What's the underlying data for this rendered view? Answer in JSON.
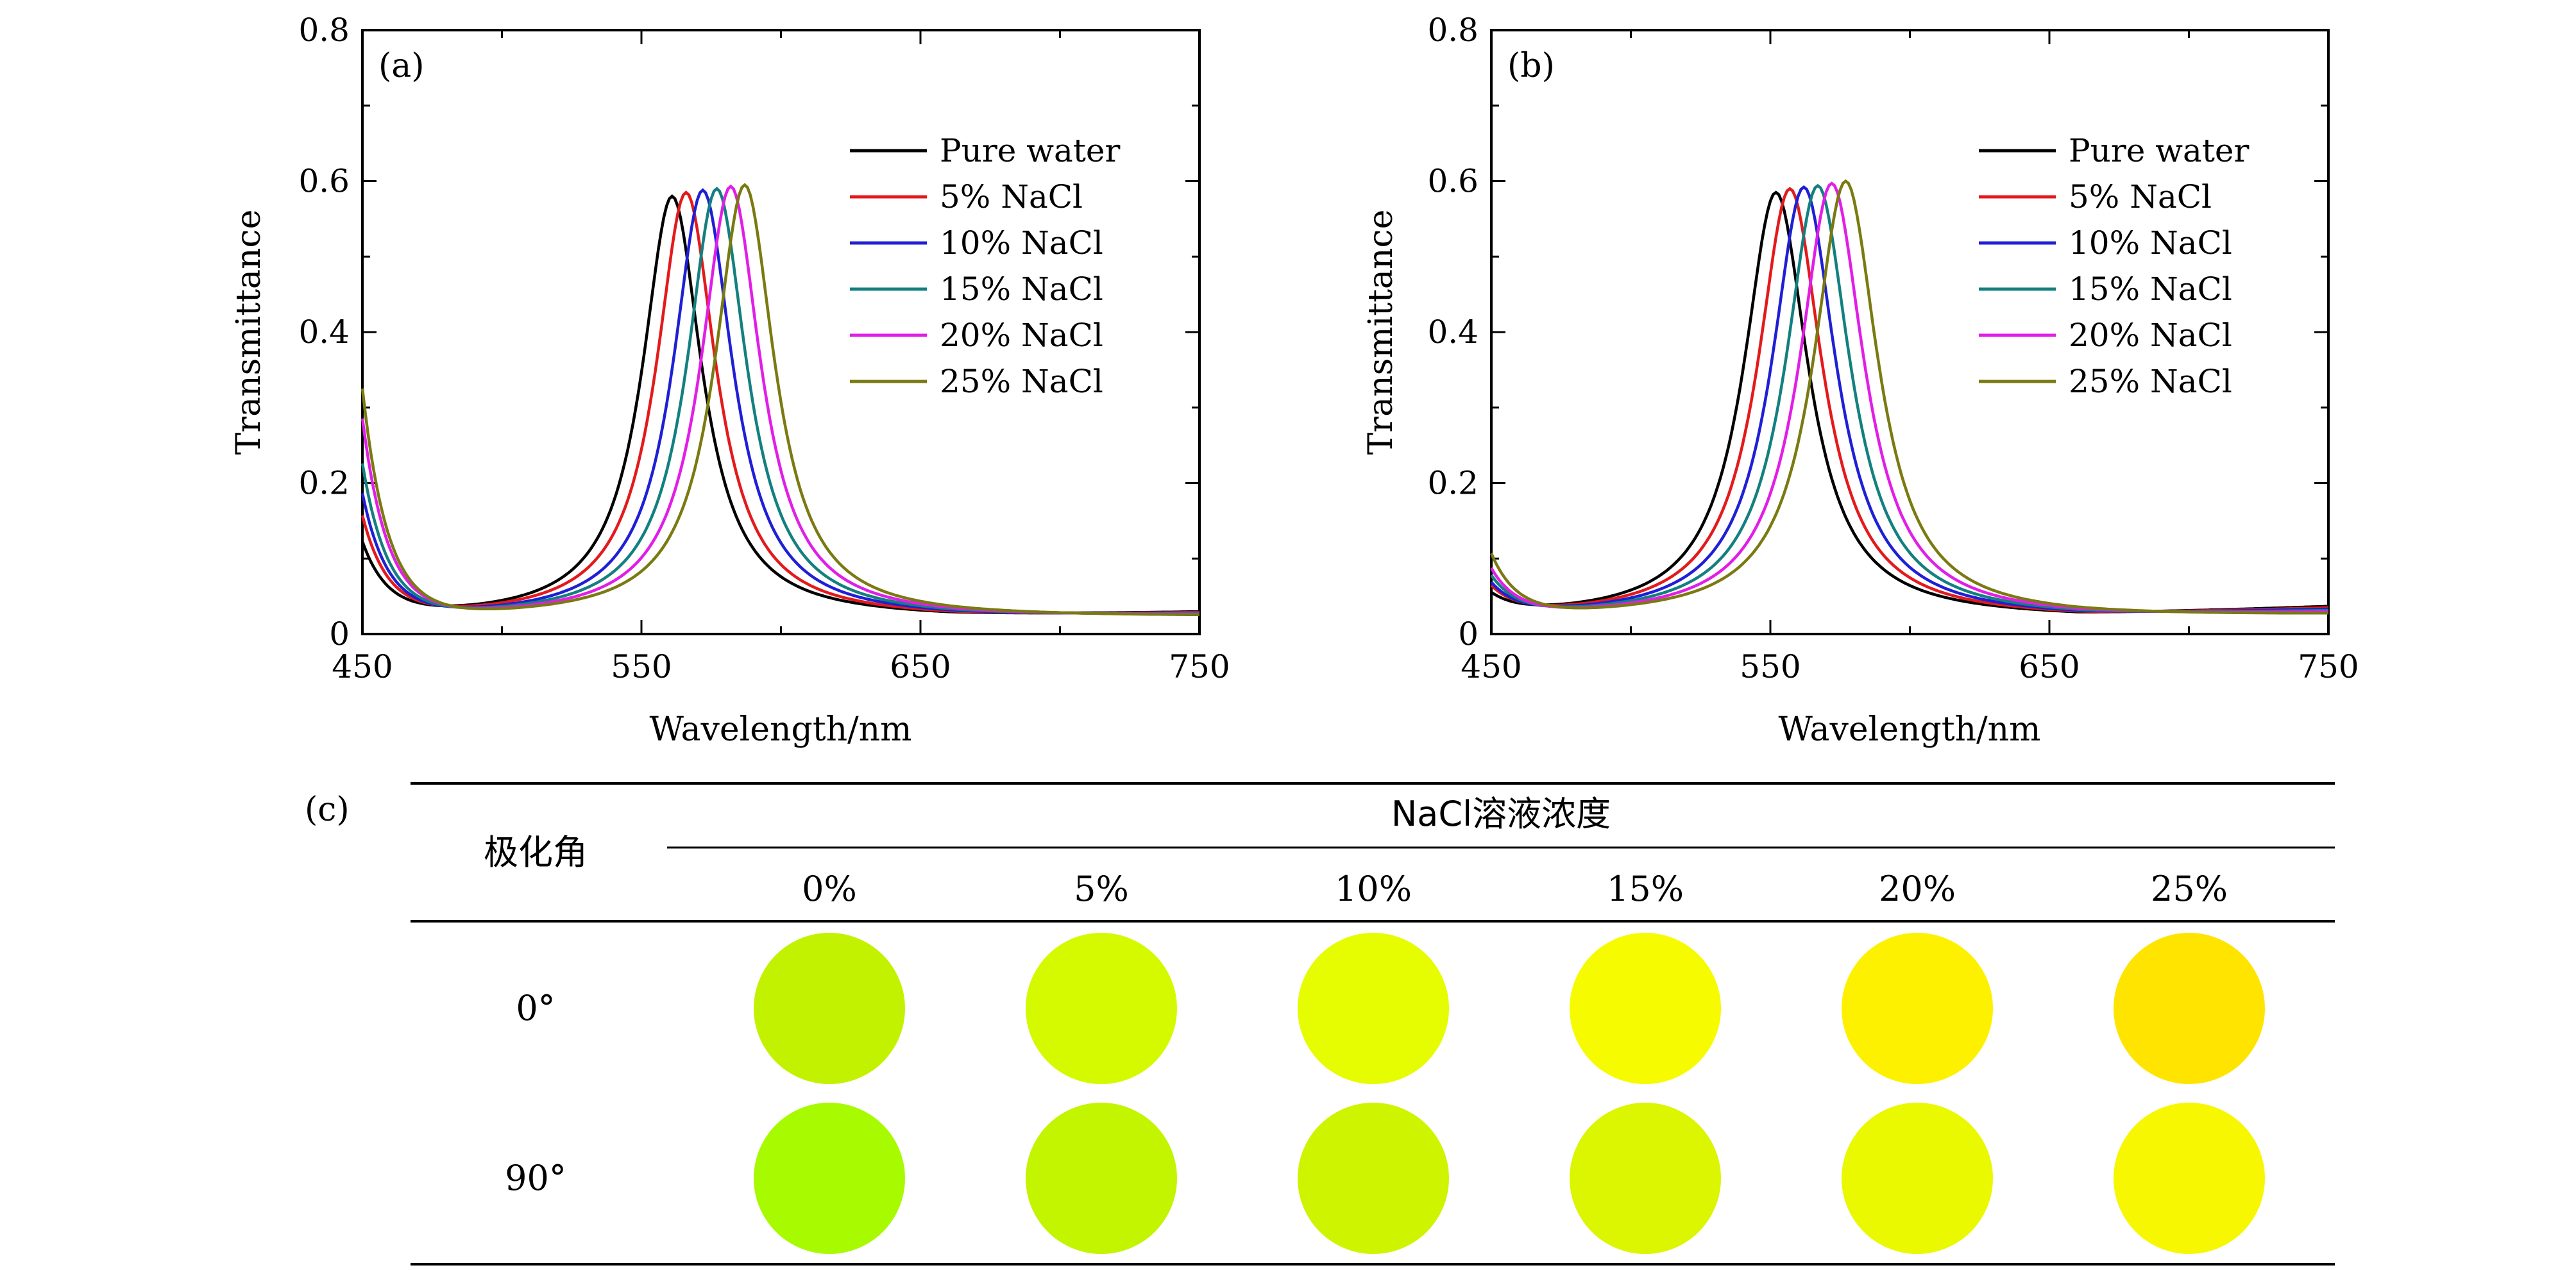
{
  "colors": {
    "Pure water": "#000000",
    "5% NaCl": "#e31a1c",
    "10% NaCl": "#1f1fd6",
    "15% NaCl": "#13807f",
    "20% NaCl": "#e11ee6",
    "25% NaCl": "#7a7a12"
  },
  "chart_data": [
    {
      "type": "line",
      "panel_label": "(a)",
      "xlabel": "Wavelength/nm",
      "ylabel": "Transmittance",
      "xlim": [
        450,
        750
      ],
      "ylim": [
        0,
        0.8
      ],
      "xticks": [
        450,
        550,
        650,
        750
      ],
      "xtick_labels": [
        "450",
        "550",
        "650",
        "750"
      ],
      "yticks": [
        0,
        0.2,
        0.4,
        0.6,
        0.8
      ],
      "ytick_labels": [
        "0",
        "0.2",
        "0.4",
        "0.6",
        "0.8"
      ],
      "legend_position": "upper-right",
      "series": [
        {
          "name": "Pure water",
          "peak_x": 561,
          "peak_y": 0.58,
          "hwhm": 13,
          "start_y": 0.115,
          "floor_y": 0.02,
          "end_y": 0.027
        },
        {
          "name": "5% NaCl",
          "peak_x": 566,
          "peak_y": 0.585,
          "hwhm": 13,
          "start_y": 0.15,
          "floor_y": 0.02,
          "end_y": 0.026
        },
        {
          "name": "10% NaCl",
          "peak_x": 572,
          "peak_y": 0.588,
          "hwhm": 13,
          "start_y": 0.18,
          "floor_y": 0.02,
          "end_y": 0.025
        },
        {
          "name": "15% NaCl",
          "peak_x": 577,
          "peak_y": 0.59,
          "hwhm": 13,
          "start_y": 0.22,
          "floor_y": 0.02,
          "end_y": 0.024
        },
        {
          "name": "20% NaCl",
          "peak_x": 582,
          "peak_y": 0.593,
          "hwhm": 13,
          "start_y": 0.28,
          "floor_y": 0.02,
          "end_y": 0.023
        },
        {
          "name": "25% NaCl",
          "peak_x": 587,
          "peak_y": 0.595,
          "hwhm": 13,
          "start_y": 0.32,
          "floor_y": 0.02,
          "end_y": 0.022
        }
      ]
    },
    {
      "type": "line",
      "panel_label": "(b)",
      "xlabel": "Wavelength/nm",
      "ylabel": "Transmittance",
      "xlim": [
        450,
        750
      ],
      "ylim": [
        0,
        0.8
      ],
      "xticks": [
        450,
        550,
        650,
        750
      ],
      "xtick_labels": [
        "450",
        "550",
        "650",
        "750"
      ],
      "yticks": [
        0,
        0.2,
        0.4,
        0.6,
        0.8
      ],
      "ytick_labels": [
        "0",
        "0.2",
        "0.4",
        "0.6",
        "0.8"
      ],
      "legend_position": "upper-right",
      "series": [
        {
          "name": "Pure water",
          "peak_x": 552,
          "peak_y": 0.585,
          "hwhm": 14,
          "start_y": 0.045,
          "floor_y": 0.02,
          "end_y": 0.034
        },
        {
          "name": "5% NaCl",
          "peak_x": 557,
          "peak_y": 0.59,
          "hwhm": 14,
          "start_y": 0.055,
          "floor_y": 0.02,
          "end_y": 0.032
        },
        {
          "name": "10% NaCl",
          "peak_x": 562,
          "peak_y": 0.592,
          "hwhm": 14,
          "start_y": 0.06,
          "floor_y": 0.02,
          "end_y": 0.03
        },
        {
          "name": "15% NaCl",
          "peak_x": 567,
          "peak_y": 0.594,
          "hwhm": 14,
          "start_y": 0.07,
          "floor_y": 0.02,
          "end_y": 0.028
        },
        {
          "name": "20% NaCl",
          "peak_x": 572,
          "peak_y": 0.597,
          "hwhm": 14,
          "start_y": 0.08,
          "floor_y": 0.02,
          "end_y": 0.026
        },
        {
          "name": "25% NaCl",
          "peak_x": 577,
          "peak_y": 0.6,
          "hwhm": 14,
          "start_y": 0.1,
          "floor_y": 0.02,
          "end_y": 0.024
        }
      ]
    },
    {
      "type": "table",
      "panel_label": "(c)",
      "row_header_title": "极化角",
      "column_group_title": "NaCl溶液浓度",
      "columns": [
        "0%",
        "5%",
        "10%",
        "15%",
        "20%",
        "25%"
      ],
      "rows": [
        {
          "label": "0°",
          "swatches": [
            "#c3f200",
            "#d5fa00",
            "#e6fc00",
            "#f7fb00",
            "#fef100",
            "#ffe400"
          ]
        },
        {
          "label": "90°",
          "swatches": [
            "#a8fa00",
            "#c3f400",
            "#cff400",
            "#dcf500",
            "#eaf800",
            "#f6f700"
          ]
        }
      ]
    }
  ]
}
